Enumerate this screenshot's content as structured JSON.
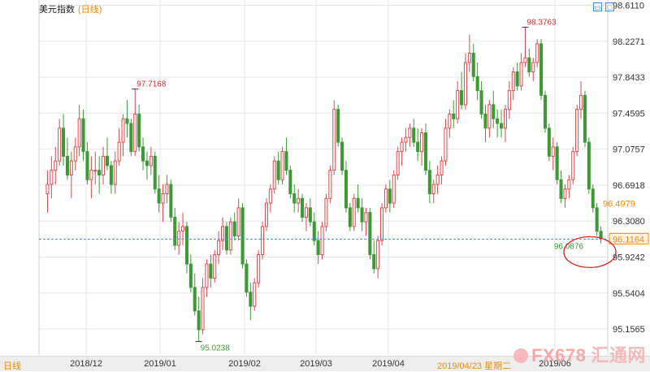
{
  "header": {
    "title": "美元指数",
    "period": "(日线)",
    "btn_restore": "▭",
    "btn_max": "□"
  },
  "footer": {
    "period": "日线",
    "ticks": [
      "2018/12",
      "2019/01",
      "2019/02",
      "2019/03",
      "2019/04",
      "2019/06"
    ],
    "cursor": "2019/04/23 星期二"
  },
  "watermark": {
    "brand": "FX678",
    "cn": "汇通网"
  },
  "colors": {
    "up": "#e04848",
    "down": "#3c9a36",
    "grid": "#e6e6e6",
    "price_line": "#3a8ee6",
    "last_label": "#f08a00",
    "highlight": "#e02020"
  },
  "chart_data": {
    "type": "candlestick",
    "series_name": "美元指数 (日线)",
    "x_start": "2018/11/06",
    "x_ticks": [
      "2018/12",
      "2019/01",
      "2019/02",
      "2019/03",
      "2019/04",
      "2019/06"
    ],
    "ylim": [
      94.88,
      98.65
    ],
    "y_ticks": [
      98.611,
      98.2271,
      97.8433,
      97.4595,
      97.0757,
      96.6918,
      96.308,
      95.9242,
      95.5404,
      95.1565
    ],
    "annotations": {
      "max": 98.3763,
      "min": 95.0238,
      "local_max": 97.7168,
      "current_bid": 96.0876,
      "last_price": 96.1164,
      "ma_value": 96.4979
    },
    "ohlc": [
      [
        96.6,
        96.85,
        96.4,
        96.7
      ],
      [
        96.7,
        97.0,
        96.55,
        96.85
      ],
      [
        96.85,
        97.1,
        96.7,
        96.95
      ],
      [
        96.95,
        97.4,
        96.9,
        97.3
      ],
      [
        97.3,
        97.45,
        96.9,
        97.0
      ],
      [
        97.0,
        97.2,
        96.75,
        96.8
      ],
      [
        96.8,
        97.05,
        96.55,
        96.95
      ],
      [
        96.95,
        97.2,
        96.85,
        97.1
      ],
      [
        97.1,
        97.55,
        97.0,
        97.4
      ],
      [
        97.4,
        97.5,
        96.95,
        97.05
      ],
      [
        97.05,
        97.15,
        96.7,
        96.75
      ],
      [
        96.75,
        97.0,
        96.55,
        96.85
      ],
      [
        96.85,
        97.05,
        96.7,
        96.85
      ],
      [
        96.85,
        97.0,
        96.6,
        96.8
      ],
      [
        96.8,
        97.1,
        96.7,
        97.0
      ],
      [
        97.0,
        97.2,
        96.85,
        96.9
      ],
      [
        96.9,
        96.95,
        96.6,
        96.7
      ],
      [
        96.7,
        97.05,
        96.6,
        96.95
      ],
      [
        96.95,
        97.3,
        96.9,
        97.15
      ],
      [
        97.15,
        97.45,
        97.0,
        97.4
      ],
      [
        97.4,
        97.6,
        97.2,
        97.35
      ],
      [
        97.35,
        97.4,
        97.0,
        97.05
      ],
      [
        97.05,
        97.72,
        97.0,
        97.45
      ],
      [
        97.45,
        97.55,
        97.05,
        97.1
      ],
      [
        97.1,
        97.2,
        96.85,
        96.95
      ],
      [
        96.95,
        97.05,
        96.75,
        96.9
      ],
      [
        96.9,
        97.1,
        96.8,
        97.0
      ],
      [
        97.0,
        97.05,
        96.6,
        96.65
      ],
      [
        96.65,
        96.8,
        96.4,
        96.5
      ],
      [
        96.5,
        96.7,
        96.3,
        96.6
      ],
      [
        96.6,
        96.8,
        96.5,
        96.7
      ],
      [
        96.7,
        96.75,
        96.3,
        96.35
      ],
      [
        96.35,
        96.45,
        96.0,
        96.05
      ],
      [
        96.05,
        96.3,
        95.95,
        96.2
      ],
      [
        96.2,
        96.4,
        96.05,
        96.25
      ],
      [
        96.25,
        96.3,
        95.75,
        95.85
      ],
      [
        95.85,
        95.95,
        95.55,
        95.6
      ],
      [
        95.6,
        95.75,
        95.3,
        95.35
      ],
      [
        95.35,
        95.5,
        95.02,
        95.15
      ],
      [
        95.15,
        95.7,
        95.1,
        95.6
      ],
      [
        95.6,
        95.9,
        95.5,
        95.85
      ],
      [
        95.85,
        95.95,
        95.6,
        95.7
      ],
      [
        95.7,
        96.0,
        95.65,
        95.95
      ],
      [
        95.95,
        96.2,
        95.85,
        96.1
      ],
      [
        96.1,
        96.35,
        96.0,
        96.25
      ],
      [
        96.25,
        96.3,
        95.95,
        96.0
      ],
      [
        96.0,
        96.35,
        95.95,
        96.3
      ],
      [
        96.3,
        96.4,
        96.1,
        96.15
      ],
      [
        96.15,
        96.55,
        96.1,
        96.45
      ],
      [
        96.45,
        96.5,
        95.8,
        95.85
      ],
      [
        95.85,
        95.9,
        95.5,
        95.55
      ],
      [
        95.55,
        95.65,
        95.25,
        95.4
      ],
      [
        95.4,
        95.7,
        95.35,
        95.65
      ],
      [
        95.65,
        96.0,
        95.6,
        95.95
      ],
      [
        95.95,
        96.3,
        95.9,
        96.25
      ],
      [
        96.25,
        96.55,
        96.2,
        96.5
      ],
      [
        96.5,
        96.7,
        96.4,
        96.65
      ],
      [
        96.65,
        97.0,
        96.6,
        96.95
      ],
      [
        96.95,
        97.05,
        96.7,
        96.75
      ],
      [
        96.75,
        97.1,
        96.7,
        97.05
      ],
      [
        97.05,
        97.2,
        96.8,
        96.85
      ],
      [
        96.85,
        96.9,
        96.55,
        96.6
      ],
      [
        96.6,
        96.7,
        96.4,
        96.5
      ],
      [
        96.5,
        96.65,
        96.4,
        96.55
      ],
      [
        96.55,
        96.6,
        96.3,
        96.35
      ],
      [
        96.35,
        96.5,
        96.2,
        96.45
      ],
      [
        96.45,
        96.55,
        96.25,
        96.3
      ],
      [
        96.3,
        96.4,
        96.05,
        96.1
      ],
      [
        96.1,
        96.2,
        95.85,
        95.95
      ],
      [
        95.95,
        96.3,
        95.9,
        96.25
      ],
      [
        96.25,
        96.6,
        96.2,
        96.55
      ],
      [
        96.55,
        96.9,
        96.5,
        96.85
      ],
      [
        96.85,
        97.6,
        96.8,
        97.5
      ],
      [
        97.5,
        97.55,
        97.1,
        97.15
      ],
      [
        97.15,
        97.2,
        96.8,
        96.85
      ],
      [
        96.85,
        96.95,
        96.4,
        96.45
      ],
      [
        96.45,
        96.5,
        96.2,
        96.25
      ],
      [
        96.25,
        96.6,
        96.2,
        96.55
      ],
      [
        96.55,
        96.7,
        96.4,
        96.45
      ],
      [
        96.45,
        96.55,
        96.2,
        96.3
      ],
      [
        96.3,
        96.45,
        96.15,
        96.4
      ],
      [
        96.4,
        96.45,
        95.9,
        95.95
      ],
      [
        95.95,
        96.1,
        95.75,
        95.8
      ],
      [
        95.8,
        96.15,
        95.7,
        96.1
      ],
      [
        96.1,
        96.5,
        96.05,
        96.45
      ],
      [
        96.45,
        96.7,
        96.4,
        96.65
      ],
      [
        96.65,
        96.75,
        96.4,
        96.5
      ],
      [
        96.5,
        96.85,
        96.45,
        96.8
      ],
      [
        96.8,
        97.1,
        96.75,
        97.05
      ],
      [
        97.05,
        97.2,
        96.9,
        97.15
      ],
      [
        97.15,
        97.3,
        97.05,
        97.2
      ],
      [
        97.2,
        97.35,
        97.1,
        97.3
      ],
      [
        97.3,
        97.4,
        97.1,
        97.15
      ],
      [
        97.15,
        97.3,
        96.95,
        97.05
      ],
      [
        97.05,
        97.3,
        96.9,
        97.25
      ],
      [
        97.25,
        97.35,
        96.8,
        96.85
      ],
      [
        96.85,
        96.95,
        96.5,
        96.6
      ],
      [
        96.6,
        96.75,
        96.5,
        96.7
      ],
      [
        96.7,
        96.9,
        96.6,
        96.8
      ],
      [
        96.8,
        97.0,
        96.7,
        96.95
      ],
      [
        96.95,
        97.4,
        96.9,
        97.3
      ],
      [
        97.3,
        97.5,
        97.2,
        97.45
      ],
      [
        97.45,
        97.6,
        97.3,
        97.4
      ],
      [
        97.4,
        97.8,
        97.35,
        97.7
      ],
      [
        97.7,
        97.9,
        97.5,
        97.55
      ],
      [
        97.55,
        98.1,
        97.5,
        98.0
      ],
      [
        98.0,
        98.3,
        97.9,
        98.1
      ],
      [
        98.1,
        98.2,
        97.8,
        97.85
      ],
      [
        97.85,
        98.0,
        97.6,
        97.7
      ],
      [
        97.7,
        97.8,
        97.4,
        97.45
      ],
      [
        97.45,
        97.55,
        97.15,
        97.3
      ],
      [
        97.3,
        97.6,
        97.2,
        97.55
      ],
      [
        97.55,
        97.7,
        97.3,
        97.4
      ],
      [
        97.4,
        97.5,
        97.2,
        97.35
      ],
      [
        97.35,
        97.5,
        97.2,
        97.3
      ],
      [
        97.3,
        97.55,
        97.15,
        97.5
      ],
      [
        97.5,
        97.8,
        97.4,
        97.7
      ],
      [
        97.7,
        97.95,
        97.6,
        97.9
      ],
      [
        97.9,
        98.0,
        97.7,
        97.75
      ],
      [
        97.75,
        98.1,
        97.7,
        98.0
      ],
      [
        98.0,
        98.38,
        97.95,
        98.05
      ],
      [
        98.05,
        98.15,
        97.85,
        97.9
      ],
      [
        97.9,
        98.05,
        97.8,
        98.0
      ],
      [
        98.0,
        98.25,
        97.95,
        98.2
      ],
      [
        98.2,
        98.25,
        97.6,
        97.65
      ],
      [
        97.65,
        97.7,
        97.25,
        97.3
      ],
      [
        97.3,
        97.35,
        96.95,
        97.0
      ],
      [
        97.0,
        97.2,
        96.85,
        97.1
      ],
      [
        97.1,
        97.15,
        96.7,
        96.75
      ],
      [
        96.75,
        96.85,
        96.5,
        96.55
      ],
      [
        96.55,
        96.7,
        96.45,
        96.65
      ],
      [
        96.65,
        96.8,
        96.55,
        96.75
      ],
      [
        96.75,
        97.1,
        96.7,
        97.05
      ],
      [
        97.05,
        97.55,
        97.0,
        97.5
      ],
      [
        97.5,
        97.8,
        97.4,
        97.65
      ],
      [
        97.65,
        97.7,
        97.1,
        97.15
      ],
      [
        97.15,
        97.2,
        96.6,
        96.65
      ],
      [
        96.65,
        96.7,
        96.4,
        96.45
      ],
      [
        96.45,
        96.5,
        96.15,
        96.2
      ],
      [
        96.2,
        96.25,
        96.07,
        96.12
      ]
    ]
  }
}
